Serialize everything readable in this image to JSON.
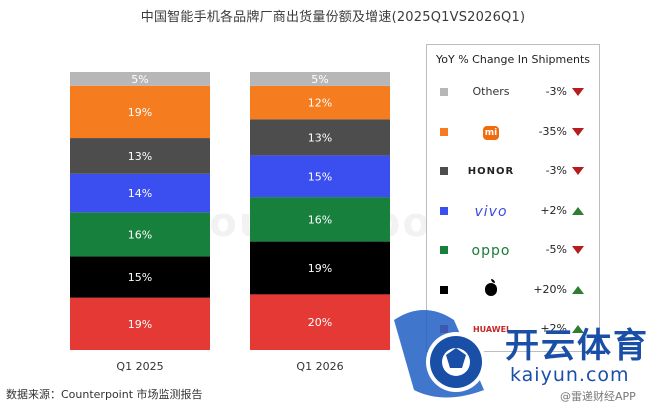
{
  "title": "中国智能手机各品牌厂商出货量份额及增速(2025Q1VS2026Q1)",
  "source": "数据来源：Counterpoint 市场监测报告",
  "watermark_center": "Counterpoint",
  "watermark": {
    "cn": "开云体育",
    "en": "kaiyun.com",
    "small": "@雷递财经APP"
  },
  "legend": {
    "title": "YoY % Change In Shipments",
    "items": [
      {
        "brand": "Others",
        "change": "-3%",
        "dir": "down",
        "color": "#b7b7b7",
        "logo": "text"
      },
      {
        "brand": "mi",
        "change": "-35%",
        "dir": "down",
        "color": "#f57c1f",
        "logo": "xiaomi-logo"
      },
      {
        "brand": "HONOR",
        "change": "-3%",
        "dir": "down",
        "color": "#4d4d4d",
        "logo": "honor-wordmark"
      },
      {
        "brand": "vivo",
        "change": "+2%",
        "dir": "up",
        "color": "#3b4ef0",
        "logo": "vivo-wordmark"
      },
      {
        "brand": "oppo",
        "change": "-5%",
        "dir": "down",
        "color": "#17803d",
        "logo": "oppo-wordmark"
      },
      {
        "brand": "",
        "change": "+20%",
        "dir": "up",
        "color": "#000000",
        "logo": "apple-logo"
      },
      {
        "brand": "HUAWEI",
        "change": "+2%",
        "dir": "up",
        "color": "#e53935",
        "logo": "huawei-logo"
      }
    ]
  },
  "chart_data": {
    "type": "bar",
    "stacked": true,
    "normalized": true,
    "categories": [
      "Q1 2025",
      "Q1 2026"
    ],
    "series": [
      {
        "color": "#e53935",
        "values": [
          19,
          20
        ],
        "labels": [
          "19%",
          "20%"
        ]
      },
      {
        "color": "#000000",
        "values": [
          15,
          19
        ],
        "labels": [
          "15%",
          "19%"
        ]
      },
      {
        "color": "#17803d",
        "values": [
          16,
          16
        ],
        "labels": [
          "16%",
          "16%"
        ]
      },
      {
        "color": "#3b4ef0",
        "values": [
          14,
          15
        ],
        "labels": [
          "14%",
          "15%"
        ]
      },
      {
        "color": "#4d4d4d",
        "values": [
          13,
          13
        ],
        "labels": [
          "13%",
          "13%"
        ]
      },
      {
        "color": "#f57c1f",
        "values": [
          19,
          12
        ],
        "labels": [
          "19%",
          "12%"
        ]
      },
      {
        "color": "#b7b7b7",
        "values": [
          5,
          5
        ],
        "labels": [
          "5%",
          "5%"
        ]
      }
    ],
    "title": "中国智能手机各品牌厂商出货量份额及增速(2025Q1VS2026Q1)",
    "xlabel": "",
    "ylabel": "",
    "grid": false,
    "legend": "right"
  }
}
